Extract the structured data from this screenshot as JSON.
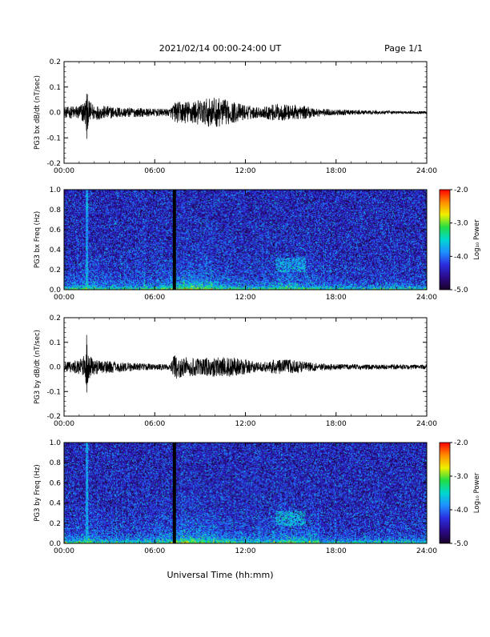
{
  "header": {
    "title": "2021/02/14  00:00-24:00 UT",
    "page": "Page 1/1"
  },
  "x_axis": {
    "title": "Universal Time (hh:mm)",
    "tick_labels": [
      "00:00",
      "06:00",
      "12:00",
      "18:00",
      "24:00"
    ]
  },
  "colorbar": {
    "label": "Log₁₀ Power",
    "tick_labels": [
      "-2.0",
      "-3.0",
      "-4.0",
      "-5.0"
    ],
    "range": [
      -5.0,
      -2.0
    ],
    "colors": [
      "#1a0026",
      "#2a0a8a",
      "#2b2de0",
      "#1e8fff",
      "#00d8d0",
      "#22dd44",
      "#f0f000",
      "#ff8c00",
      "#ff0000"
    ]
  },
  "chart_data": [
    {
      "type": "line",
      "ylabel": "PG3 bx dB/dt (nT/sec)",
      "ylim": [
        -0.2,
        0.2
      ],
      "xlim": [
        0,
        24
      ],
      "y_tick_labels": [
        "0.2",
        "0.1",
        "0.0",
        "-0.1",
        "-0.2"
      ],
      "series_color": "#000000",
      "envelope": {
        "x": [
          0,
          0.5,
          1.0,
          1.4,
          1.5,
          1.6,
          2.0,
          3.0,
          4.0,
          5.0,
          6.0,
          7.0,
          7.3,
          8.0,
          9.0,
          10.0,
          11.0,
          12.0,
          13.0,
          14.0,
          15.0,
          16.0,
          17.0,
          18.0,
          20.0,
          22.0,
          24.0
        ],
        "amplitude": [
          0.02,
          0.025,
          0.03,
          0.05,
          0.09,
          0.05,
          0.03,
          0.025,
          0.02,
          0.018,
          0.015,
          0.015,
          0.04,
          0.045,
          0.05,
          0.06,
          0.045,
          0.03,
          0.02,
          0.035,
          0.03,
          0.025,
          0.015,
          0.012,
          0.008,
          0.006,
          0.005
        ],
        "spikes": [
          {
            "x": 1.5,
            "max": 0.085,
            "min": -0.12
          }
        ]
      }
    },
    {
      "type": "heatmap",
      "ylabel": "PG3 bx Freq (Hz)",
      "ylim": [
        0.0,
        1.0
      ],
      "xlim": [
        0,
        24
      ],
      "y_tick_labels": [
        "1.0",
        "0.8",
        "0.6",
        "0.4",
        "0.2",
        "0.0"
      ],
      "zlim": [
        -5.0,
        -2.0
      ],
      "gap_x": 7.3,
      "features": [
        {
          "x": 1.5,
          "band": [
            0.0,
            1.0
          ],
          "level": -3.8
        },
        {
          "x_range": [
            14.0,
            16.0
          ],
          "band": [
            0.18,
            0.32
          ],
          "level": -3.7
        }
      ]
    },
    {
      "type": "line",
      "ylabel": "PG3 by dB/dt (nT/sec)",
      "ylim": [
        -0.2,
        0.2
      ],
      "xlim": [
        0,
        24
      ],
      "y_tick_labels": [
        "0.2",
        "0.1",
        "0.0",
        "-0.1",
        "-0.2"
      ],
      "series_color": "#000000",
      "envelope": {
        "x": [
          0,
          0.5,
          1.0,
          1.4,
          1.5,
          1.6,
          2.0,
          3.0,
          4.0,
          5.0,
          6.0,
          7.0,
          7.3,
          8.0,
          9.0,
          10.0,
          11.0,
          12.0,
          13.0,
          14.0,
          15.0,
          16.0,
          17.0,
          18.0,
          20.0,
          22.0,
          24.0
        ],
        "amplitude": [
          0.02,
          0.025,
          0.03,
          0.05,
          0.1,
          0.05,
          0.03,
          0.025,
          0.02,
          0.015,
          0.012,
          0.012,
          0.05,
          0.04,
          0.035,
          0.04,
          0.04,
          0.03,
          0.02,
          0.03,
          0.03,
          0.02,
          0.015,
          0.012,
          0.01,
          0.01,
          0.01
        ],
        "spikes": [
          {
            "x": 1.5,
            "max": 0.15,
            "min": -0.12
          }
        ]
      }
    },
    {
      "type": "heatmap",
      "ylabel": "PG3 by Freq (Hz)",
      "ylim": [
        0.0,
        1.0
      ],
      "xlim": [
        0,
        24
      ],
      "y_tick_labels": [
        "1.0",
        "0.8",
        "0.6",
        "0.4",
        "0.2",
        "0.0"
      ],
      "zlim": [
        -5.0,
        -2.0
      ],
      "gap_x": 7.3,
      "features": [
        {
          "x": 1.5,
          "band": [
            0.0,
            1.0
          ],
          "level": -3.8
        },
        {
          "x_range": [
            14.0,
            16.0
          ],
          "band": [
            0.18,
            0.32
          ],
          "level": -3.6
        }
      ]
    }
  ]
}
